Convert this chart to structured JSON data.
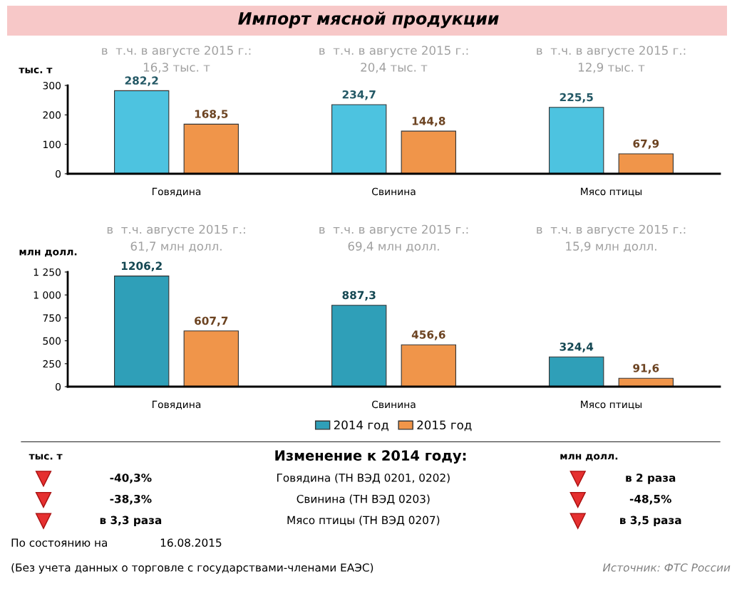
{
  "chart_data": [
    {
      "type": "bar",
      "title": "Импорт мясной продукции",
      "ylabel": "тыс. т",
      "categories": [
        "Говядина",
        "Свинина",
        "Мясо птицы"
      ],
      "series": [
        {
          "color": "#4dc3e0",
          "values": [
            282.2,
            234.7,
            225.5
          ],
          "value_labels": [
            "282,2",
            "234,7",
            "225,5"
          ]
        },
        {
          "color": "#f0954a",
          "values": [
            168.5,
            144.8,
            67.9
          ],
          "value_labels": [
            "168,5",
            "144,8",
            "67,9"
          ]
        }
      ],
      "ylim": [
        0,
        300
      ],
      "yticks": [
        0,
        100,
        200,
        300
      ],
      "grid": false,
      "legend": false,
      "annotations": [
        "в  т.ч. в августе 2015 г.:\n16,3 тыс. т",
        "в  т.ч. в августе 2015 г.:\n20,4 тыс. т",
        "в  т.ч. в августе 2015 г.:\n12,9 тыс. т"
      ]
    },
    {
      "type": "bar",
      "ylabel": "млн долл.",
      "categories": [
        "Говядина",
        "Свинина",
        "Мясо птицы"
      ],
      "series": [
        {
          "name": "2014 год",
          "color": "#2f9fb8",
          "values": [
            1206.2,
            887.3,
            324.4
          ],
          "value_labels": [
            "1206,2",
            "887,3",
            "324,4"
          ]
        },
        {
          "name": "2015 год",
          "color": "#f0954a",
          "values": [
            607.7,
            456.6,
            91.6
          ],
          "value_labels": [
            "607,7",
            "456,6",
            "91,6"
          ]
        }
      ],
      "ylim": [
        0,
        1250
      ],
      "yticks": [
        0,
        250,
        500,
        750,
        {
          "value": 1000,
          "label": "1 000"
        },
        {
          "value": 1250,
          "label": "1 250"
        }
      ],
      "grid": false,
      "legend": "bottom",
      "annotations": [
        "в  т.ч. августе 2015 г.:\n61,7 млн долл.",
        "в  т.ч. в августе 2015 г.:\n69,4 млн долл.",
        "в  т.ч. в августе 2015 г.:\n15,9 млн долл."
      ]
    },
    {
      "type": "other",
      "title": "Изменение к 2014 году:",
      "annotations": [
        "тыс. т",
        "млн долл.",
        "-40,3%",
        "Говядина (ТН ВЭД 0201, 0202)",
        "в 2 раза",
        "-38,3%",
        "Свинина (ТН ВЭД 0203)",
        "-48,5%",
        "в 3,3 раза",
        "Мясо птицы (ТН ВЭД 0207)",
        "в 3,5 раза",
        "По состоянию на",
        "16.08.2015",
        "(Без учета данных о торговле с государствами-членами ЕАЭС)",
        "Источник: ФТС России"
      ]
    }
  ]
}
